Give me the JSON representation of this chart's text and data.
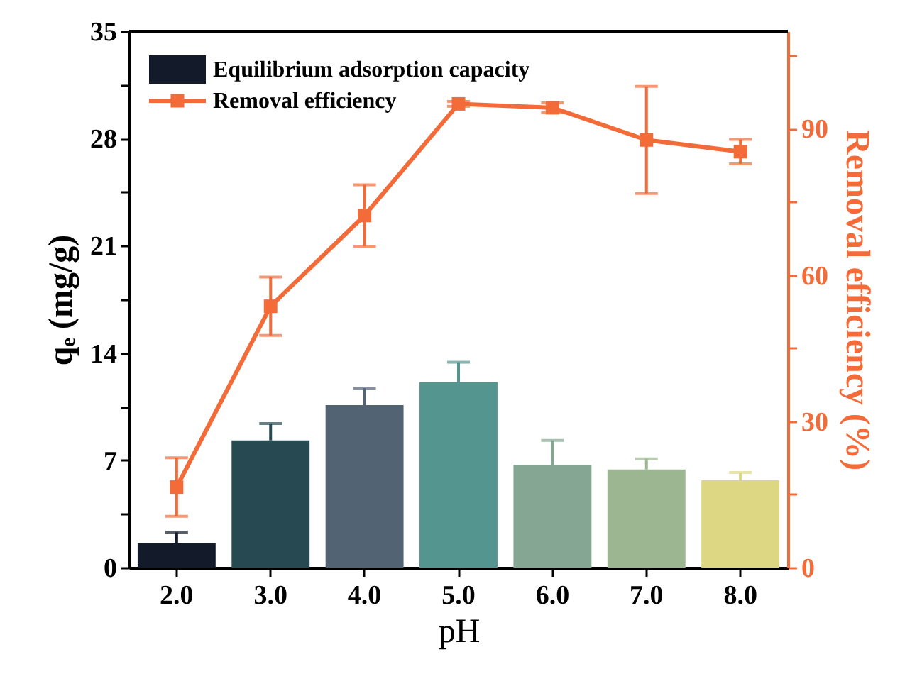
{
  "chart_data": {
    "type": "bar",
    "xlabel": "pH",
    "ylabel": "qₑ (mg/g)",
    "y2label": "Removal efficiency (%)",
    "categories": [
      "2.0",
      "3.0",
      "4.0",
      "5.0",
      "6.0",
      "7.0",
      "8.0"
    ],
    "series": [
      {
        "name": "Equilibrium adsorption capacity",
        "colors": [
          "#131a2a",
          "#274a52",
          "#526373",
          "#549590",
          "#84a692",
          "#9cb692",
          "#ddd784"
        ],
        "values": [
          1.6,
          8.3,
          10.6,
          12.1,
          6.7,
          6.4,
          5.7
        ],
        "errors": [
          0.7,
          1.1,
          1.1,
          1.3,
          1.6,
          0.7,
          0.5
        ]
      },
      {
        "name": "Removal efficiency",
        "type": "line",
        "axis": "y2",
        "color": "#f26b38",
        "marker": "square",
        "values": [
          16.5,
          53.6,
          72.2,
          95.1,
          94.3,
          87.7,
          85.3
        ],
        "errors": [
          6,
          6,
          6.3,
          0.5,
          1,
          11,
          2.5
        ]
      }
    ],
    "ylim": [
      0,
      35
    ],
    "yticks": [
      0,
      {
        "value": 3.5,
        "label": null
      },
      7,
      {
        "value": 10.5,
        "label": null
      },
      14,
      {
        "value": 17.5,
        "label": null
      },
      21,
      {
        "value": 24.5,
        "label": null
      },
      28,
      {
        "value": 31.5,
        "label": null
      },
      35
    ],
    "y2lim": [
      0,
      110
    ],
    "y2ticks": [
      0,
      {
        "value": 15,
        "label": null
      },
      30,
      {
        "value": 45,
        "label": null
      },
      60,
      {
        "value": 75,
        "label": null
      },
      90,
      {
        "value": 105,
        "label": null
      }
    ],
    "legend": "top left",
    "grid": false
  }
}
